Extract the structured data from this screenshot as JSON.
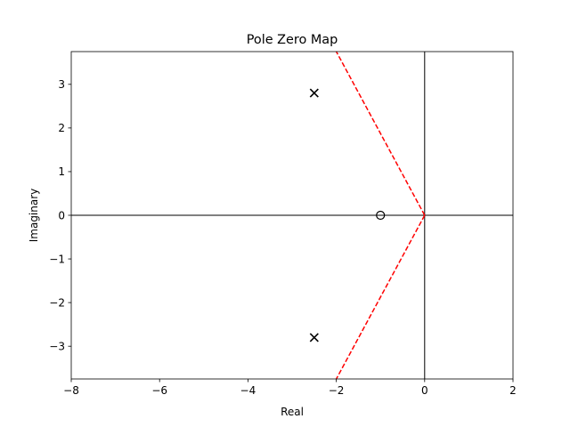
{
  "chart_data": {
    "type": "scatter",
    "title": "Pole Zero Map",
    "xlabel": "Real",
    "ylabel": "Imaginary",
    "xlim": [
      -8,
      2
    ],
    "ylim": [
      -3.75,
      3.75
    ],
    "xticks": [
      -8,
      -6,
      -4,
      -2,
      0,
      2
    ],
    "xtick_labels": [
      "−8",
      "−6",
      "−4",
      "−2",
      "0",
      "2"
    ],
    "yticks": [
      -3,
      -2,
      -1,
      0,
      1,
      2,
      3
    ],
    "ytick_labels": [
      "−3",
      "−2",
      "−1",
      "0",
      "1",
      "2",
      "3"
    ],
    "poles": [
      {
        "x": -2.5,
        "y": 2.8
      },
      {
        "x": -2.5,
        "y": -2.8
      }
    ],
    "zeros": [
      {
        "x": -1.0,
        "y": 0.0
      }
    ],
    "reference_lines": [
      {
        "x": [
          0,
          -2.0
        ],
        "y": [
          0,
          3.75
        ],
        "color": "#ff0000",
        "style": "dashed"
      },
      {
        "x": [
          0,
          -2.0
        ],
        "y": [
          0,
          -3.75
        ],
        "color": "#ff0000",
        "style": "dashed"
      }
    ],
    "axis_lines": [
      {
        "orientation": "horizontal",
        "at": 0,
        "color": "#000000"
      },
      {
        "orientation": "vertical",
        "at": 0,
        "color": "#000000"
      }
    ],
    "grid": false,
    "legend": "none",
    "colors": {
      "pole_marker": "#000000",
      "zero_marker": "#000000",
      "reference": "#ff0000",
      "axes": "#000000"
    }
  }
}
